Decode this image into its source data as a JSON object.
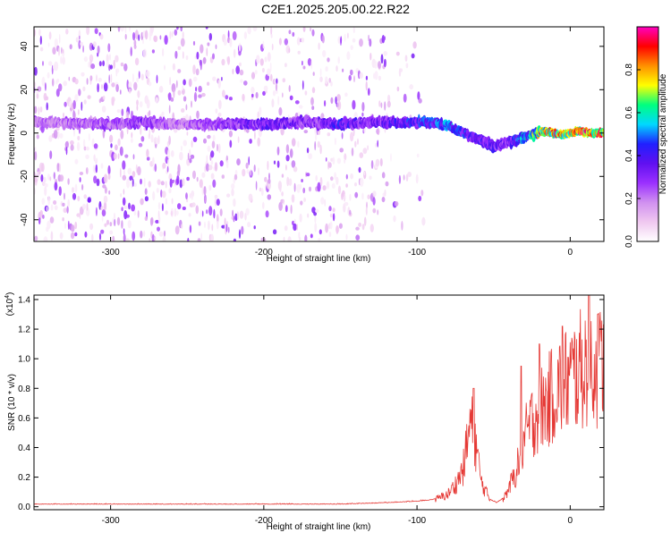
{
  "title": "C2E1.2025.205.00.22.R22",
  "colors": {
    "snr_line": "#e53935",
    "background": "#ffffff",
    "colormap": [
      "#ffffff",
      "#f0c8f0",
      "#d090f0",
      "#9b30ff",
      "#6010f0",
      "#2020ff",
      "#00d8ff",
      "#00ff7f",
      "#ffff00",
      "#ff9000",
      "#ff0000",
      "#ff00c0"
    ]
  },
  "chart_data": [
    {
      "type": "heatmap",
      "name": "spectrogram",
      "xlabel": "Height of straight line (km)",
      "ylabel": "Frequency (Hz)",
      "xlim": [
        -350,
        22
      ],
      "ylim": [
        -50,
        49
      ],
      "xticks": [
        -300,
        -200,
        -100,
        0
      ],
      "yticks": [
        -40,
        -20,
        0,
        20,
        40
      ],
      "colorbar": {
        "label": "Normalized spectral amplitude",
        "range": [
          0.0,
          1.0
        ],
        "ticks": [
          "0.0",
          "0.2",
          "0.4",
          "0.6",
          "0.8"
        ],
        "tick_values": [
          0.0,
          0.2,
          0.4,
          0.6,
          0.8
        ]
      },
      "ridge": [
        {
          "x": -345,
          "freq": 5,
          "amp": 0.25
        },
        {
          "x": -300,
          "freq": 4,
          "amp": 0.3
        },
        {
          "x": -280,
          "freq": 5,
          "amp": 0.35
        },
        {
          "x": -260,
          "freq": 4,
          "amp": 0.25
        },
        {
          "x": -220,
          "freq": 4,
          "amp": 0.35
        },
        {
          "x": -200,
          "freq": 4,
          "amp": 0.4
        },
        {
          "x": -170,
          "freq": 5,
          "amp": 0.35
        },
        {
          "x": -150,
          "freq": 4,
          "amp": 0.45
        },
        {
          "x": -130,
          "freq": 5,
          "amp": 0.35
        },
        {
          "x": -110,
          "freq": 5,
          "amp": 0.45
        },
        {
          "x": -95,
          "freq": 5,
          "amp": 0.5
        },
        {
          "x": -80,
          "freq": 4,
          "amp": 0.55
        },
        {
          "x": -70,
          "freq": 0,
          "amp": 0.5
        },
        {
          "x": -60,
          "freq": -3,
          "amp": 0.45
        },
        {
          "x": -50,
          "freq": -6,
          "amp": 0.4
        },
        {
          "x": -42,
          "freq": -5,
          "amp": 0.4
        },
        {
          "x": -35,
          "freq": -3,
          "amp": 0.5
        },
        {
          "x": -25,
          "freq": -1,
          "amp": 0.7
        },
        {
          "x": -18,
          "freq": 1,
          "amp": 0.85
        },
        {
          "x": -10,
          "freq": 0,
          "amp": 0.9
        },
        {
          "x": -5,
          "freq": -1,
          "amp": 0.95
        },
        {
          "x": 5,
          "freq": 1,
          "amp": 1.0
        },
        {
          "x": 12,
          "freq": 0,
          "amp": 0.95
        },
        {
          "x": 22,
          "freq": 0,
          "amp": 0.9
        }
      ]
    },
    {
      "type": "line",
      "name": "snr",
      "xlabel": "Height of straight line (km)",
      "ylabel": "SNR (10 * v/v)",
      "y_scale_label": "(x10",
      "y_scale_exponent": "4",
      "y_scale_close": ")",
      "xlim": [
        -350,
        22
      ],
      "ylim": [
        -0.02,
        1.43
      ],
      "xticks": [
        -300,
        -200,
        -100,
        0
      ],
      "yticks": [
        "0.0",
        "0.2",
        "0.4",
        "0.6",
        "0.8",
        "1.0",
        "1.2",
        "1.4"
      ],
      "ytick_values": [
        0.0,
        0.2,
        0.4,
        0.6,
        0.8,
        1.0,
        1.2,
        1.4
      ],
      "envelope": [
        {
          "x": -350,
          "y": 0.02
        },
        {
          "x": -200,
          "y": 0.02
        },
        {
          "x": -150,
          "y": 0.02
        },
        {
          "x": -120,
          "y": 0.03
        },
        {
          "x": -100,
          "y": 0.04
        },
        {
          "x": -90,
          "y": 0.05
        },
        {
          "x": -80,
          "y": 0.1
        },
        {
          "x": -75,
          "y": 0.18
        },
        {
          "x": -70,
          "y": 0.3
        },
        {
          "x": -65,
          "y": 0.7
        },
        {
          "x": -62,
          "y": 0.55
        },
        {
          "x": -58,
          "y": 0.2
        },
        {
          "x": -52,
          "y": 0.05
        },
        {
          "x": -48,
          "y": 0.03
        },
        {
          "x": -44,
          "y": 0.06
        },
        {
          "x": -40,
          "y": 0.15
        },
        {
          "x": -35,
          "y": 0.3
        },
        {
          "x": -30,
          "y": 0.55
        },
        {
          "x": -25,
          "y": 0.7
        },
        {
          "x": -20,
          "y": 0.8
        },
        {
          "x": -15,
          "y": 0.85
        },
        {
          "x": -10,
          "y": 0.95
        },
        {
          "x": -5,
          "y": 1.0
        },
        {
          "x": 0,
          "y": 1.05
        },
        {
          "x": 5,
          "y": 1.1
        },
        {
          "x": 10,
          "y": 1.15
        },
        {
          "x": 13,
          "y": 1.25
        },
        {
          "x": 16,
          "y": 1.1
        },
        {
          "x": 20,
          "y": 1.15
        },
        {
          "x": 22,
          "y": 1.2
        }
      ],
      "peaks": [
        {
          "x": -63,
          "y": 0.8
        },
        {
          "x": -32,
          "y": 0.95
        },
        {
          "x": -20,
          "y": 1.1
        },
        {
          "x": -5,
          "y": 1.22
        },
        {
          "x": 12,
          "y": 1.43
        },
        {
          "x": 18,
          "y": 1.3
        }
      ]
    }
  ]
}
